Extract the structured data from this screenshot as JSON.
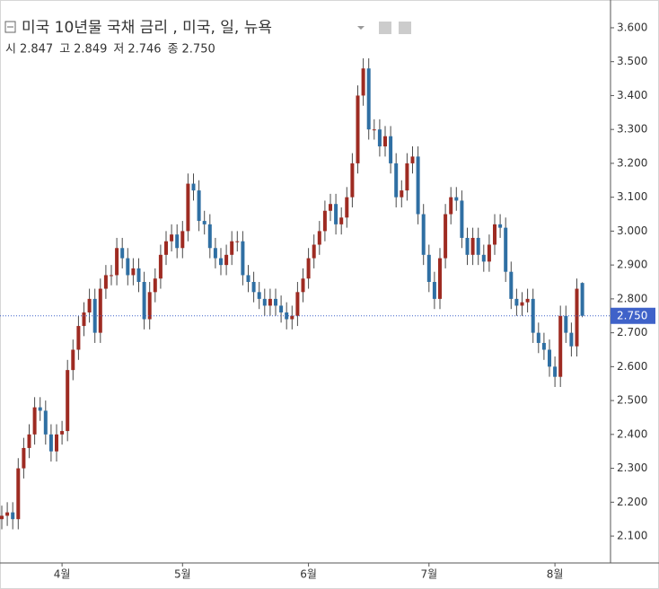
{
  "chart_data": {
    "type": "candlestick",
    "title": "미국 10년물 국채 금리 , 미국, 일, 뉴욕",
    "ohlc_header": [
      {
        "name": "시",
        "value": "2.847"
      },
      {
        "name": "고",
        "value": "2.849"
      },
      {
        "name": "저",
        "value": "2.746"
      },
      {
        "name": "종",
        "value": "2.750"
      }
    ],
    "last_label": "2.750",
    "categories": [
      null,
      null,
      null,
      null,
      null,
      null,
      null,
      null,
      null,
      null,
      null,
      null,
      null,
      null,
      null,
      null,
      null,
      null,
      null,
      null,
      null,
      null,
      null,
      null,
      null,
      null,
      null,
      null,
      null,
      null,
      null,
      null,
      null,
      null,
      null,
      null,
      null,
      null,
      null,
      null,
      null,
      null,
      null,
      null,
      null,
      null,
      null,
      null,
      null,
      null,
      null,
      null,
      null,
      null,
      null,
      null,
      null,
      null,
      null,
      null,
      null,
      null,
      null,
      null,
      null,
      null,
      null,
      null,
      null,
      null,
      null,
      null,
      null,
      null,
      null,
      null,
      null,
      null,
      null,
      null,
      null,
      null,
      null,
      null,
      null,
      null,
      null,
      null,
      null,
      null,
      null,
      null,
      null,
      null,
      null,
      null,
      null,
      null,
      null,
      null,
      null,
      null,
      null,
      null,
      null,
      null,
      null
    ],
    "open": [
      2.15,
      2.16,
      2.17,
      2.15,
      2.3,
      2.36,
      2.4,
      2.48,
      2.47,
      2.4,
      2.35,
      2.4,
      2.41,
      2.59,
      2.65,
      2.72,
      2.76,
      2.8,
      2.7,
      2.83,
      2.87,
      2.87,
      2.95,
      2.92,
      2.87,
      2.89,
      2.85,
      2.74,
      2.82,
      2.86,
      2.93,
      2.97,
      2.99,
      2.95,
      3.0,
      3.14,
      3.12,
      3.03,
      3.02,
      2.95,
      2.92,
      2.9,
      2.93,
      2.97,
      2.97,
      2.87,
      2.85,
      2.82,
      2.8,
      2.78,
      2.8,
      2.78,
      2.76,
      2.74,
      2.75,
      2.82,
      2.86,
      2.92,
      2.96,
      3.0,
      3.06,
      3.08,
      3.02,
      3.04,
      3.1,
      3.2,
      3.4,
      3.48,
      3.3,
      3.3,
      3.25,
      3.28,
      3.2,
      3.1,
      3.12,
      3.2,
      3.22,
      3.05,
      2.93,
      2.85,
      2.8,
      2.92,
      3.05,
      3.1,
      3.09,
      2.98,
      2.93,
      2.98,
      2.93,
      2.91,
      2.96,
      3.02,
      3.01,
      2.88,
      2.8,
      2.78,
      2.79,
      2.8,
      2.7,
      2.67,
      2.65,
      2.6,
      2.57,
      2.75,
      2.7,
      2.66,
      2.847
    ],
    "high": [
      2.19,
      2.2,
      2.2,
      2.33,
      2.39,
      2.43,
      2.51,
      2.51,
      2.5,
      2.43,
      2.43,
      2.44,
      2.62,
      2.68,
      2.75,
      2.79,
      2.83,
      2.83,
      2.86,
      2.9,
      2.9,
      2.98,
      2.98,
      2.95,
      2.92,
      2.92,
      2.88,
      2.85,
      2.89,
      2.96,
      3.0,
      3.02,
      3.02,
      3.03,
      3.17,
      3.17,
      3.15,
      3.06,
      3.05,
      2.98,
      2.95,
      2.96,
      3.0,
      3.0,
      3.0,
      2.9,
      2.88,
      2.85,
      2.83,
      2.83,
      2.83,
      2.81,
      2.79,
      2.78,
      2.85,
      2.89,
      2.95,
      2.99,
      3.03,
      3.09,
      3.11,
      3.11,
      3.07,
      3.13,
      3.23,
      3.43,
      3.51,
      3.51,
      3.33,
      3.33,
      3.31,
      3.31,
      3.23,
      3.15,
      3.23,
      3.25,
      3.25,
      3.08,
      2.96,
      2.88,
      2.95,
      3.08,
      3.13,
      3.13,
      3.12,
      3.01,
      3.01,
      3.01,
      2.96,
      2.99,
      3.05,
      3.05,
      3.04,
      2.91,
      2.83,
      2.82,
      2.83,
      2.83,
      2.73,
      2.7,
      2.68,
      2.63,
      2.78,
      2.78,
      2.73,
      2.86,
      2.849
    ],
    "low": [
      2.12,
      2.13,
      2.12,
      2.12,
      2.27,
      2.33,
      2.37,
      2.44,
      2.37,
      2.32,
      2.32,
      2.37,
      2.38,
      2.56,
      2.62,
      2.69,
      2.73,
      2.67,
      2.67,
      2.8,
      2.84,
      2.84,
      2.89,
      2.84,
      2.84,
      2.82,
      2.71,
      2.71,
      2.79,
      2.83,
      2.9,
      2.94,
      2.92,
      2.92,
      2.97,
      3.09,
      3.0,
      2.99,
      2.92,
      2.89,
      2.87,
      2.87,
      2.9,
      2.94,
      2.84,
      2.82,
      2.79,
      2.77,
      2.75,
      2.75,
      2.75,
      2.73,
      2.71,
      2.71,
      2.72,
      2.79,
      2.83,
      2.89,
      2.93,
      2.97,
      3.03,
      2.99,
      2.99,
      3.01,
      3.07,
      3.17,
      3.37,
      3.27,
      3.27,
      3.22,
      3.22,
      3.17,
      3.07,
      3.07,
      3.09,
      3.17,
      3.02,
      2.9,
      2.82,
      2.77,
      2.77,
      2.89,
      3.02,
      3.06,
      2.95,
      2.9,
      2.9,
      2.9,
      2.88,
      2.88,
      2.93,
      2.98,
      2.85,
      2.77,
      2.75,
      2.75,
      2.76,
      2.67,
      2.64,
      2.62,
      2.57,
      2.54,
      2.54,
      2.67,
      2.63,
      2.63,
      2.746
    ],
    "close": [
      2.16,
      2.17,
      2.15,
      2.3,
      2.36,
      2.4,
      2.48,
      2.47,
      2.4,
      2.35,
      2.4,
      2.41,
      2.59,
      2.65,
      2.72,
      2.76,
      2.8,
      2.7,
      2.83,
      2.87,
      2.87,
      2.95,
      2.92,
      2.87,
      2.89,
      2.85,
      2.74,
      2.82,
      2.86,
      2.93,
      2.97,
      2.99,
      2.95,
      3.0,
      3.14,
      3.12,
      3.03,
      3.02,
      2.95,
      2.92,
      2.9,
      2.93,
      2.97,
      2.97,
      2.87,
      2.85,
      2.82,
      2.8,
      2.78,
      2.8,
      2.78,
      2.76,
      2.74,
      2.75,
      2.82,
      2.86,
      2.92,
      2.96,
      3.0,
      3.06,
      3.08,
      3.02,
      3.04,
      3.1,
      3.2,
      3.4,
      3.48,
      3.3,
      3.3,
      3.25,
      3.28,
      3.2,
      3.1,
      3.12,
      3.2,
      3.22,
      3.05,
      2.93,
      2.85,
      2.8,
      2.92,
      3.05,
      3.1,
      3.09,
      2.98,
      2.93,
      2.98,
      2.93,
      2.91,
      2.96,
      3.02,
      3.01,
      2.88,
      2.8,
      2.78,
      2.79,
      2.8,
      2.7,
      2.67,
      2.65,
      2.6,
      2.57,
      2.75,
      2.7,
      2.66,
      2.83,
      2.75
    ],
    "up_color": "#9e2b22",
    "down_color": "#2f6fa3",
    "wick_color": "#4a4a4a",
    "ylim": [
      2.026,
      3.682
    ],
    "yticks": [
      {
        "value": 2.1,
        "label": "2.100"
      },
      {
        "value": 2.2,
        "label": "2.200"
      },
      {
        "value": 2.3,
        "label": "2.300"
      },
      {
        "value": 2.4,
        "label": "2.400"
      },
      {
        "value": 2.5,
        "label": "2.500"
      },
      {
        "value": 2.6,
        "label": "2.600"
      },
      {
        "value": 2.7,
        "label": "2.700"
      },
      {
        "value": 2.8,
        "label": "2.800"
      },
      {
        "value": 2.9,
        "label": "2.900"
      },
      {
        "value": 3.0,
        "label": "3.000"
      },
      {
        "value": 3.1,
        "label": "3.100"
      },
      {
        "value": 3.2,
        "label": "3.200"
      },
      {
        "value": 3.3,
        "label": "3.300"
      },
      {
        "value": 3.4,
        "label": "3.400"
      },
      {
        "value": 3.5,
        "label": "3.500"
      },
      {
        "value": 3.6,
        "label": "3.600"
      }
    ],
    "xticks": [
      {
        "value": 11,
        "label": "4월"
      },
      {
        "value": 33,
        "label": "5월"
      },
      {
        "value": 56,
        "label": "6월"
      },
      {
        "value": 78,
        "label": "7월"
      },
      {
        "value": 101,
        "label": "8월"
      }
    ],
    "last_line_color": "#3f62c9"
  }
}
